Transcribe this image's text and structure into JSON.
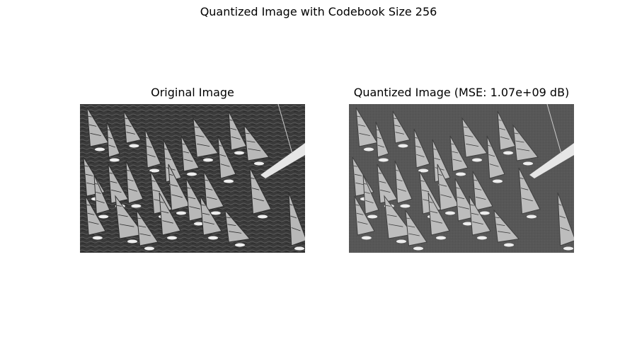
{
  "figure": {
    "suptitle": "Quantized Image with Codebook Size 256"
  },
  "panels": [
    {
      "title": "Original Image",
      "image": "grayscale-photo-windsurfers-regatta-icon"
    },
    {
      "title": "Quantized Image (MSE: 1.07e+09 dB)",
      "image": "quantized-grayscale-photo-windsurfers-icon"
    }
  ],
  "colors": {
    "original_water": "#3a3a3a",
    "quantized_background": "#575757",
    "sail_light": "#d8d8d8"
  }
}
